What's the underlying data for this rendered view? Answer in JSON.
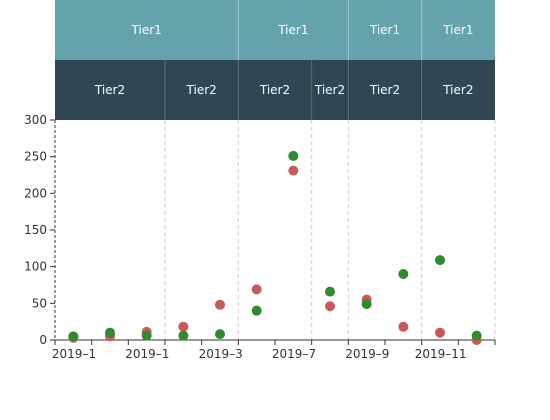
{
  "chart_data": {
    "type": "scatter",
    "header": {
      "tier1": [
        "Tier1",
        "Tier1",
        "Tier1",
        "Tier1"
      ],
      "tier2": [
        "Tier2",
        "Tier2",
        "Tier2",
        "Tier2",
        "Tier2",
        "Tier2"
      ],
      "colors": {
        "tier1_bg": "#64a3ab",
        "tier2_bg": "#2f4653"
      }
    },
    "x_tick_labels": [
      "2019–1",
      "2019–1",
      "2019–3",
      "2019–7",
      "2019–9",
      "2019–11"
    ],
    "y_ticks": [
      0,
      50,
      100,
      150,
      200,
      250,
      300
    ],
    "ylim": [
      0,
      300
    ],
    "series": [
      {
        "color": "#c95a5a",
        "points": [
          {
            "x": 0,
            "y": 3
          },
          {
            "x": 1,
            "y": 5
          },
          {
            "x": 2,
            "y": 11
          },
          {
            "x": 3,
            "y": 18
          },
          {
            "x": 4,
            "y": 48
          },
          {
            "x": 5,
            "y": 69
          },
          {
            "x": 6,
            "y": 231
          },
          {
            "x": 7,
            "y": 46
          },
          {
            "x": 8,
            "y": 55
          },
          {
            "x": 9,
            "y": 18
          },
          {
            "x": 10,
            "y": 10
          },
          {
            "x": 11,
            "y": 0
          }
        ]
      },
      {
        "color": "#2e8b2e",
        "points": [
          {
            "x": 0,
            "y": 5
          },
          {
            "x": 1,
            "y": 10
          },
          {
            "x": 2,
            "y": 6
          },
          {
            "x": 3,
            "y": 6
          },
          {
            "x": 4,
            "y": 8
          },
          {
            "x": 5,
            "y": 40
          },
          {
            "x": 6,
            "y": 251
          },
          {
            "x": 7,
            "y": 66
          },
          {
            "x": 8,
            "y": 49
          },
          {
            "x": 9,
            "y": 90
          },
          {
            "x": 10,
            "y": 109
          },
          {
            "x": 11,
            "y": 6
          }
        ]
      }
    ]
  }
}
